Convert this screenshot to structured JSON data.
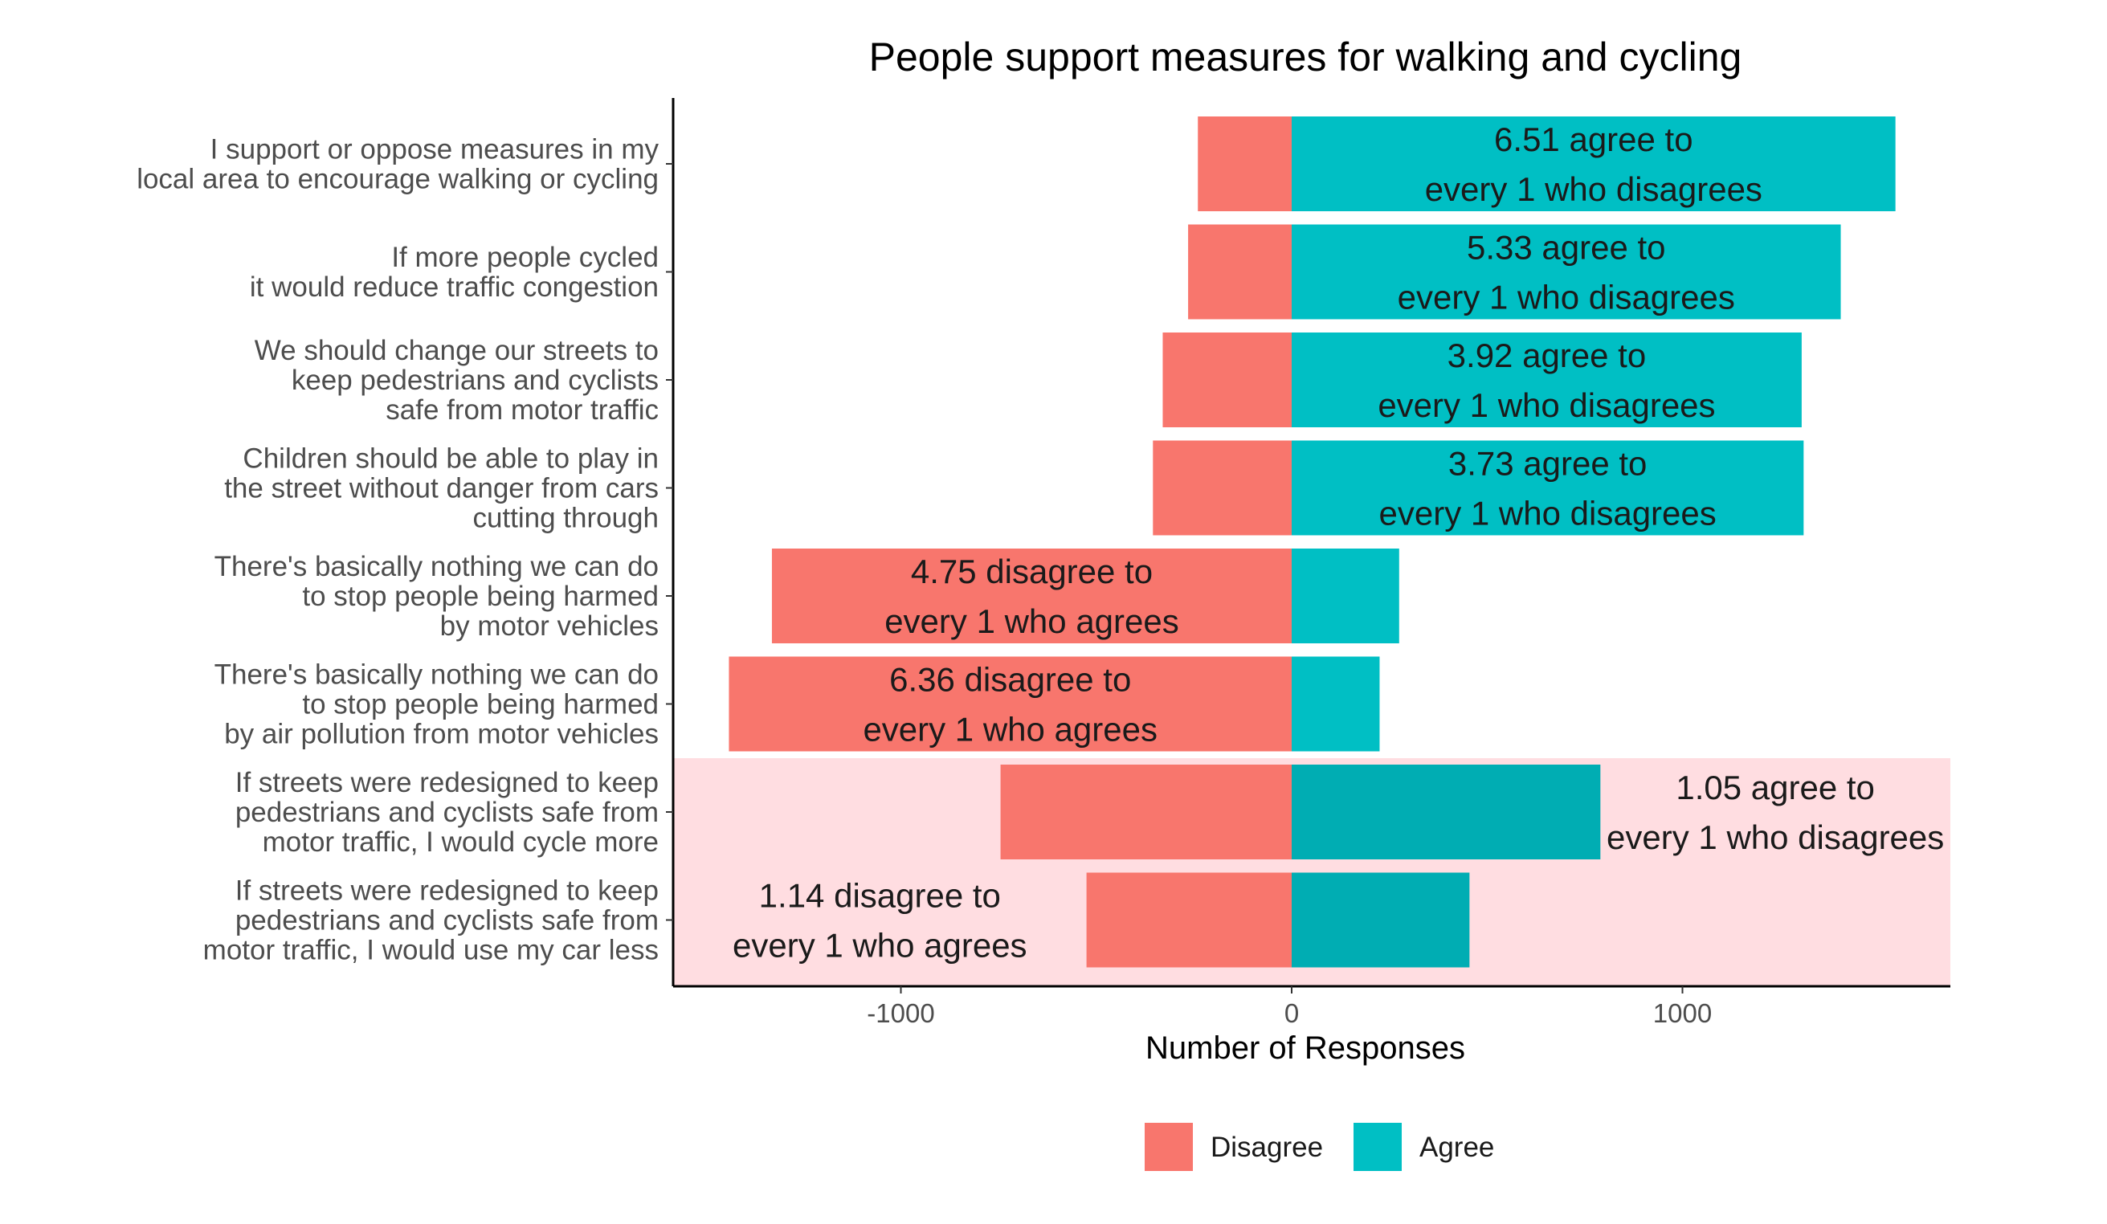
{
  "chart_data": {
    "type": "bar",
    "orientation": "horizontal-diverging",
    "title": "People support measures for walking and cycling",
    "xlabel": "Number of Responses",
    "ylabel": "",
    "xlim": [
      -1580,
      1700
    ],
    "xticks": [
      -1000,
      0,
      1000
    ],
    "xtick_labels": [
      "-1000",
      "0",
      "1000"
    ],
    "grid": false,
    "legend_position": "bottom",
    "colors": {
      "disagree": "#F8766D",
      "agree": "#00BFC4",
      "agree_highlight": "#00ADB3",
      "highlight_band": "#FFDDE1",
      "axis": "#000000"
    },
    "categories": [
      [
        "I support or oppose measures in my",
        "local area to encourage walking or cycling"
      ],
      [
        "If more people cycled",
        "it would reduce traffic congestion"
      ],
      [
        "We should change our streets to",
        "keep pedestrians and cyclists",
        "safe from motor traffic"
      ],
      [
        "Children should be able to play in",
        "the street without danger from cars",
        "cutting through"
      ],
      [
        "There's basically nothing we can do",
        "to stop people being harmed",
        "by motor vehicles"
      ],
      [
        "There's basically nothing we can do",
        "to stop people being harmed",
        "by air pollution from motor vehicles"
      ],
      [
        "If streets were redesigned to keep",
        "pedestrians and cyclists safe from",
        "motor traffic, I would cycle more"
      ],
      [
        "If streets were redesigned to keep",
        "pedestrians and cyclists safe from",
        "motor traffic, I would use my car less"
      ]
    ],
    "series": [
      {
        "name": "Disagree",
        "values": [
          -240,
          -265,
          -330,
          -355,
          -1330,
          -1440,
          -745,
          -525
        ]
      },
      {
        "name": "Agree",
        "values": [
          1545,
          1405,
          1305,
          1310,
          275,
          225,
          790,
          455
        ]
      }
    ],
    "highlighted_rows": [
      6,
      7
    ],
    "annotations": [
      {
        "row": 0,
        "side": "agree",
        "lines": [
          "6.51 agree to",
          "every 1 who disagrees"
        ]
      },
      {
        "row": 1,
        "side": "agree",
        "lines": [
          "5.33 agree to",
          "every 1 who disagrees"
        ]
      },
      {
        "row": 2,
        "side": "agree",
        "lines": [
          "3.92 agree to",
          "every 1 who disagrees"
        ]
      },
      {
        "row": 3,
        "side": "agree",
        "lines": [
          "3.73 agree to",
          "every 1 who disagrees"
        ]
      },
      {
        "row": 4,
        "side": "disagree",
        "lines": [
          "4.75 disagree to",
          "every 1 who agrees"
        ]
      },
      {
        "row": 5,
        "side": "disagree",
        "lines": [
          "6.36 disagree to",
          "every 1 who agrees"
        ]
      },
      {
        "row": 6,
        "side": "outside-agree",
        "lines": [
          "1.05 agree to",
          "every 1 who disagrees"
        ]
      },
      {
        "row": 7,
        "side": "outside-disagree",
        "lines": [
          "1.14 disagree to",
          "every 1 who agrees"
        ]
      }
    ],
    "legend": [
      {
        "key": "disagree",
        "label": "Disagree"
      },
      {
        "key": "agree",
        "label": "Agree"
      }
    ]
  }
}
